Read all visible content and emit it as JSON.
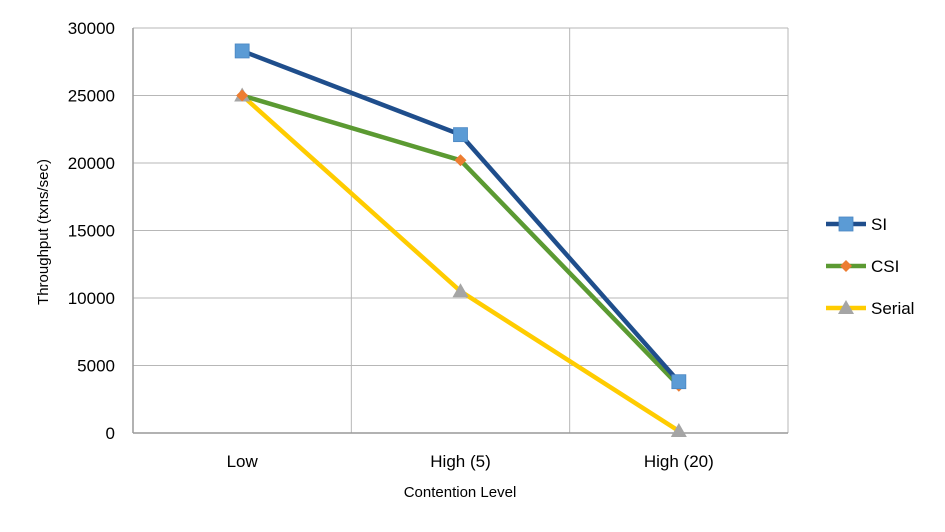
{
  "chart_data": {
    "type": "line",
    "title": "",
    "xlabel": "Contention Level",
    "ylabel": "Throughput (txns/sec)",
    "categories": [
      "Low",
      "High (5)",
      "High (20)"
    ],
    "ylim": [
      0,
      30000
    ],
    "yticks": [
      0,
      5000,
      10000,
      15000,
      20000,
      25000,
      30000
    ],
    "grid": true,
    "legend_position": "right",
    "series": [
      {
        "name": "SI",
        "values": [
          28300,
          22100,
          3800
        ],
        "color": "#1f4e8c",
        "marker_color": "#5b9bd5",
        "marker": "square"
      },
      {
        "name": "CSI",
        "values": [
          25000,
          20200,
          3500
        ],
        "color": "#5b9a32",
        "marker_color": "#ed7d31",
        "marker": "diamond"
      },
      {
        "name": "Serial",
        "values": [
          25000,
          10500,
          150
        ],
        "color": "#ffcc00",
        "marker_color": "#a5a5a5",
        "marker": "triangle"
      }
    ]
  }
}
